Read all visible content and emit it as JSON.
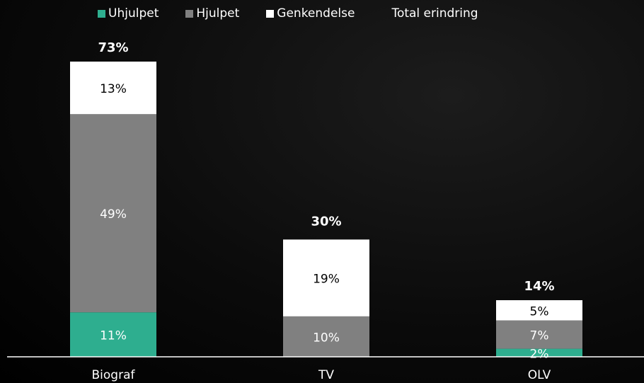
{
  "chart_data": {
    "type": "bar",
    "stacked": true,
    "categories": [
      "Biograf",
      "TV",
      "OLV"
    ],
    "series": [
      {
        "name": "Uhjulpet",
        "values": [
          11,
          0,
          2
        ],
        "labels": [
          "11%",
          "",
          "2%"
        ],
        "color": "#2eae8f"
      },
      {
        "name": "Hjulpet",
        "values": [
          49,
          10,
          7
        ],
        "labels": [
          "49%",
          "10%",
          "7%"
        ],
        "color": "#808080"
      },
      {
        "name": "Genkendelse",
        "values": [
          13,
          19,
          5
        ],
        "labels": [
          "13%",
          "19%",
          "5%"
        ],
        "color": "#ffffff"
      }
    ],
    "totals": {
      "name": "Total erindring",
      "values": [
        73,
        30,
        14
      ],
      "labels": [
        "73%",
        "30%",
        "14%"
      ]
    },
    "ylim": [
      0,
      73
    ],
    "legend_position": "top",
    "grid": false
  },
  "legend": {
    "uhjulpet": "Uhjulpet",
    "hjulpet": "Hjulpet",
    "genkendelse": "Genkendelse",
    "total": "Total erindring"
  }
}
